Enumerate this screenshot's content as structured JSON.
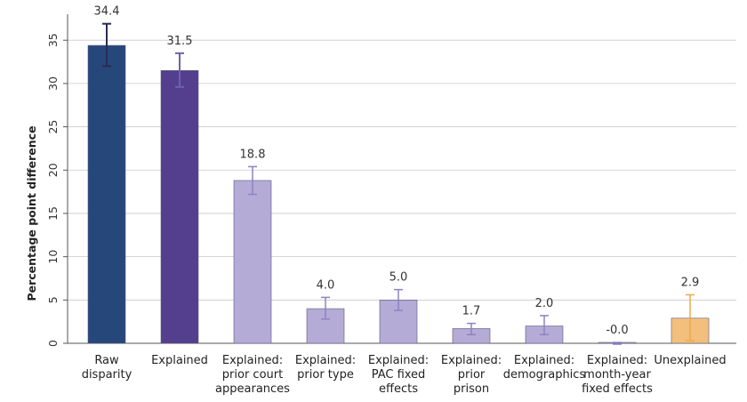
{
  "chart_data": {
    "type": "bar",
    "title": "",
    "xlabel": "",
    "ylabel": "Percentage point difference",
    "ylim": [
      0,
      38
    ],
    "yticks": [
      0,
      5,
      10,
      15,
      20,
      25,
      30,
      35
    ],
    "grid": "horizontal",
    "categories": [
      [
        "Raw",
        "disparity"
      ],
      [
        "Explained"
      ],
      [
        "Explained:",
        "prior court",
        "appearances"
      ],
      [
        "Explained:",
        "prior type"
      ],
      [
        "Explained:",
        "PAC fixed",
        "effects"
      ],
      [
        "Explained:",
        "prior",
        "prison"
      ],
      [
        "Explained:",
        "demographics"
      ],
      [
        "Explained:",
        "month-year",
        "fixed effects"
      ],
      [
        "Unexplained"
      ]
    ],
    "values": [
      34.4,
      31.5,
      18.8,
      4.0,
      5.0,
      1.7,
      2.0,
      -0.0,
      2.9
    ],
    "value_labels": [
      "34.4",
      "31.5",
      "18.8",
      "4.0",
      "5.0",
      "1.7",
      "2.0",
      "-0.0",
      "2.9"
    ],
    "error_low": [
      32.0,
      29.6,
      17.2,
      2.8,
      3.8,
      1.0,
      1.0,
      -0.1,
      0.3
    ],
    "error_high": [
      36.9,
      33.5,
      20.4,
      5.3,
      6.2,
      2.3,
      3.2,
      0.1,
      5.6
    ],
    "bar_colors": [
      "#26477a",
      "#533f8e",
      "#b4abd6",
      "#b4abd6",
      "#b4abd6",
      "#b4abd6",
      "#b4abd6",
      "#b4abd6",
      "#f2bf7c"
    ],
    "error_colors": [
      "#2b2b55",
      "#6f61ab",
      "#8d82c2",
      "#8d82c2",
      "#8d82c2",
      "#8d82c2",
      "#8d82c2",
      "#8d82c2",
      "#f0a848"
    ]
  }
}
